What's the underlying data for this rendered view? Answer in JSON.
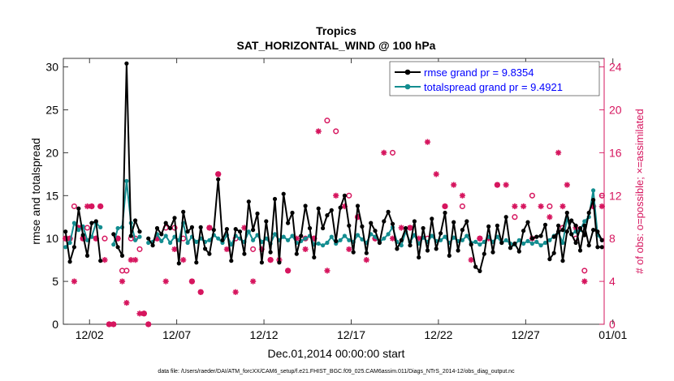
{
  "chart_data": {
    "type": "line",
    "title": "Tropics",
    "subtitle": "SAT_HORIZONTAL_WIND @ 100 hPa",
    "xlabel": "Dec.01,2014 00:00:00 start",
    "ylabel": "rmse and totalspread",
    "y2label": "# of obs: o=possible; ×=assimilated",
    "footnote": "data file: /Users/raeder/DAI/ATM_forcXX/CAM6_setup/f.e21.FHIST_BGC.f09_025.CAM6assim.011/Diags_NTrS_2014-12/obs_diag_output.nc",
    "xlim": [
      0.5,
      31.5
    ],
    "ylim": [
      0,
      31
    ],
    "y2lim": [
      0,
      24.8
    ],
    "x_ticks": [
      2,
      7,
      12,
      17,
      22,
      27,
      32
    ],
    "x_tick_labels": [
      "12/02",
      "12/07",
      "12/12",
      "12/17",
      "12/22",
      "12/27",
      "01/01"
    ],
    "y_ticks": [
      0,
      5,
      10,
      15,
      20,
      25,
      30
    ],
    "y2_ticks": [
      0,
      4,
      8,
      12,
      16,
      20,
      24
    ],
    "legend_position": "top-right",
    "colors": {
      "rmse": "#000000",
      "spread": "#138d90",
      "obs": "#d6155e",
      "legend_text": "#0000ff"
    },
    "series": [
      {
        "name": "rmse grand pr = 9.8354",
        "segments": [
          {
            "x": [
              0.625,
              0.875,
              1.125,
              1.375,
              1.625,
              1.875,
              2.125,
              2.375,
              2.625
            ],
            "y": [
              10.8,
              7.3,
              9.0,
              13.5,
              10.4,
              8.0,
              11.8,
              12.0,
              7.4
            ]
          },
          {
            "x": [
              3.375,
              3.625,
              3.875,
              4.125,
              4.375,
              4.625,
              4.875
            ],
            "y": [
              10.5,
              9.0,
              8.0,
              30.4,
              10.3,
              12.1,
              10.8
            ]
          },
          {
            "x": [
              5.375,
              5.625,
              5.875,
              6.125,
              6.375,
              6.625,
              6.875,
              7.125,
              7.375,
              7.625,
              7.875,
              8.125,
              8.375,
              8.625,
              8.875,
              9.125,
              9.375,
              9.625,
              9.875,
              10.125,
              10.375,
              10.625,
              10.875,
              11.125,
              11.375,
              11.625,
              11.875,
              12.125,
              12.375,
              12.625,
              12.875,
              13.125,
              13.375,
              13.625,
              13.875,
              14.125,
              14.375,
              14.625,
              14.875,
              15.125,
              15.375,
              15.625,
              15.875,
              16.125,
              16.375,
              16.625,
              16.875,
              17.125,
              17.375,
              17.625,
              17.875,
              18.125,
              18.375,
              18.625,
              18.875,
              19.125,
              19.375,
              19.625,
              19.875,
              20.125,
              20.375,
              20.625,
              20.875,
              21.125,
              21.375,
              21.625,
              21.875,
              22.125,
              22.375,
              22.625,
              22.875,
              23.125,
              23.375,
              23.625,
              23.875,
              24.125,
              24.375,
              24.625,
              24.875,
              25.125,
              25.375,
              25.625,
              25.875,
              26.125,
              26.375,
              26.625,
              26.875,
              27.125,
              27.375,
              27.625,
              27.875,
              28.125,
              28.375,
              28.625,
              28.875,
              29.125,
              29.375,
              29.625,
              29.875,
              30.125,
              30.375,
              30.625,
              30.875,
              31.125,
              31.375
            ],
            "y": [
              10.0,
              9.2,
              11.2,
              10.5,
              11.8,
              11.2,
              12.4,
              7.1,
              13.1,
              10.8,
              11.3,
              7.2,
              11.3,
              8.8,
              8.2,
              11.0,
              16.9,
              9.8,
              11.1,
              7.4,
              11.1,
              10.8,
              8.2,
              14.3,
              11.0,
              12.9,
              7.2,
              12.0,
              8.4,
              14.6,
              7.2,
              15.2,
              11.8,
              13.0,
              8.2,
              10.3,
              13.8,
              11.2,
              7.8,
              13.5,
              11.2,
              12.7,
              13.3,
              9.7,
              13.6,
              15.0,
              11.5,
              8.4,
              13.8,
              11.4,
              8.3,
              11.8,
              10.9,
              9.5,
              12.0,
              13.1,
              11.7,
              8.8,
              9.8,
              11.2,
              9.2,
              12.0,
              7.8,
              11.2,
              8.6,
              12.3,
              8.8,
              10.6,
              13.0,
              8.0,
              11.9,
              8.6,
              11.0,
              12.0,
              9.3,
              6.7,
              6.2,
              8.2,
              11.4,
              8.4,
              11.5,
              9.5,
              12.5,
              8.9,
              9.4,
              8.5,
              10.9,
              11.9,
              10.0,
              10.2,
              10.3,
              11.6,
              7.6,
              8.3,
              11.5,
              7.4,
              10.8,
              12.1,
              11.5,
              8.6,
              11.5,
              9.2,
              11.0,
              10.8,
              9.8
            ]
          },
          {
            "x": [
              28.625,
              28.875,
              29.125,
              29.375,
              29.625,
              29.875,
              30.125,
              30.375,
              30.625,
              30.875,
              31.125,
              31.375
            ],
            "y": [
              10.2,
              10.8,
              11.0,
              13.0,
              10.5,
              9.5,
              11.2,
              10.4,
              13.0,
              14.5,
              9.0,
              9.0
            ]
          }
        ]
      },
      {
        "name": "totalspread grand pr = 9.4921",
        "segments": [
          {
            "x": [
              0.625,
              0.875,
              1.125,
              1.375,
              1.625,
              1.875,
              2.125,
              2.375,
              2.625
            ],
            "y": [
              9.0,
              9.5,
              11.8,
              11.0,
              11.4,
              9.8,
              10.2,
              11.8,
              11.3
            ]
          },
          {
            "x": [
              3.375,
              3.625,
              3.875,
              4.125,
              4.375,
              4.625,
              4.875
            ],
            "y": [
              9.3,
              11.2,
              11.3,
              16.7,
              11.8,
              9.8,
              10.2
            ]
          },
          {
            "x": [
              5.375,
              5.625,
              5.875,
              6.125,
              6.375,
              6.625,
              6.875,
              7.125,
              7.375,
              7.625,
              7.875,
              8.125,
              8.375,
              8.625,
              8.875,
              9.125,
              9.375,
              9.625,
              9.875,
              10.125,
              10.375,
              10.625,
              10.875,
              11.125,
              11.375,
              11.625,
              11.875,
              12.125,
              12.375,
              12.625,
              12.875,
              13.125,
              13.375,
              13.625,
              13.875,
              14.125,
              14.375,
              14.625,
              14.875,
              15.125,
              15.375,
              15.625,
              15.875,
              16.125,
              16.375,
              16.625,
              16.875,
              17.125,
              17.375,
              17.625,
              17.875,
              18.125,
              18.375,
              18.625,
              18.875,
              19.125,
              19.375,
              19.625,
              19.875,
              20.125,
              20.375,
              20.625,
              20.875,
              21.125,
              21.375,
              21.625,
              21.875,
              22.125,
              22.375,
              22.625,
              22.875,
              23.125,
              23.375,
              23.625,
              23.875,
              24.125,
              24.375,
              24.625,
              24.875,
              25.125,
              25.375,
              25.625,
              25.875,
              26.125,
              26.375,
              26.625,
              26.875,
              27.125,
              27.375,
              27.625,
              27.875,
              28.125
            ],
            "y": [
              9.5,
              9.6,
              10.5,
              9.7,
              10.3,
              9.5,
              10.2,
              9.8,
              11.8,
              9.5,
              10.2,
              9.6,
              10.0,
              9.6,
              9.8,
              10.4,
              10.0,
              9.5,
              10.4,
              9.3,
              10.3,
              10.0,
              9.6,
              10.8,
              9.8,
              10.4,
              9.6,
              10.0,
              9.4,
              10.5,
              9.8,
              10.2,
              9.8,
              10.3,
              9.5,
              9.7,
              10.0,
              10.3,
              9.3,
              9.4,
              9.2,
              9.5,
              10.2,
              9.4,
              9.8,
              10.3,
              9.8,
              9.6,
              10.4,
              9.9,
              9.5,
              10.5,
              10.2,
              9.6,
              10.0,
              10.5,
              11.3,
              9.6,
              9.2,
              10.8,
              9.6,
              10.4,
              9.4,
              10.1,
              9.6,
              10.3,
              9.7,
              9.8,
              10.2,
              9.5,
              10.1,
              9.7,
              9.8,
              10.3,
              9.5,
              9.6,
              9.3,
              9.6,
              10.2,
              9.6,
              10.2,
              9.5,
              9.8,
              9.4,
              9.3,
              9.8,
              9.4,
              9.7,
              9.4,
              9.6,
              9.2,
              9.5
            ]
          },
          {
            "x": [
              28.375,
              28.625,
              28.875,
              29.125,
              29.375,
              29.625,
              29.875,
              30.125,
              30.375,
              30.625,
              30.875,
              31.125,
              31.375
            ],
            "y": [
              9.8,
              10.3,
              10.7,
              9.5,
              12.4,
              10.5,
              10.8,
              11.0,
              12.0,
              12.5,
              15.6,
              10.4,
              9.8
            ]
          }
        ]
      },
      {
        "name": "obs possible",
        "x": [
          0.625,
          0.875,
          1.125,
          1.375,
          1.625,
          1.875,
          2.125,
          2.375,
          2.625,
          2.875,
          3.125,
          3.375,
          3.625,
          3.875,
          4.125,
          4.375,
          4.625,
          4.875,
          5.125,
          5.375,
          5.875,
          6.375,
          6.875,
          7.375,
          7.875,
          8.375,
          8.875,
          9.375,
          10.375,
          11.375,
          12.375,
          13.375,
          14.375,
          14.875,
          15.625,
          16.125,
          16.875,
          17.375,
          18.375,
          19.375,
          20.375,
          21.375,
          22.375,
          23.375,
          24.375,
          25.375,
          26.375,
          27.375,
          28.375,
          29.125,
          29.875,
          30.375,
          30.875,
          31.375
        ],
        "y": [
          8,
          8,
          11,
          9,
          8,
          9,
          11,
          8,
          11,
          8,
          0,
          0,
          8,
          5,
          5,
          8,
          8,
          7,
          1,
          0,
          8,
          9,
          9,
          8,
          4,
          3,
          9,
          14,
          8,
          7,
          6,
          5,
          8,
          8,
          19,
          18,
          12,
          10,
          8,
          16,
          9,
          8,
          11,
          11,
          8,
          13,
          10,
          12,
          11,
          9,
          8,
          5,
          11,
          12
        ]
      },
      {
        "name": "obs assimilated",
        "x": [
          0.625,
          0.875,
          1.125,
          1.375,
          1.625,
          1.875,
          2.125,
          2.375,
          2.625,
          2.875,
          3.125,
          3.375,
          3.625,
          3.875,
          4.125,
          4.375,
          4.625,
          4.875,
          5.125,
          5.375,
          5.875,
          6.375,
          6.875,
          7.375,
          7.875,
          8.375,
          8.875,
          9.375,
          9.875,
          10.375,
          10.875,
          11.375,
          11.875,
          12.375,
          12.875,
          13.375,
          13.875,
          14.375,
          14.875,
          15.125,
          15.625,
          16.125,
          16.625,
          16.875,
          17.375,
          17.875,
          18.375,
          18.875,
          19.375,
          19.875,
          20.375,
          20.875,
          21.375,
          21.875,
          22.375,
          22.875,
          23.375,
          23.875,
          24.375,
          24.875,
          25.375,
          25.875,
          26.375,
          26.875,
          27.375,
          27.875,
          28.375,
          28.875,
          29.125,
          29.375,
          29.875,
          30.375,
          30.875,
          31.375
        ],
        "y": [
          8,
          8,
          4,
          9,
          8,
          11,
          11,
          8,
          11,
          6,
          0,
          0,
          8,
          4,
          2,
          6,
          6,
          1,
          1,
          0,
          8,
          4,
          7,
          6,
          4,
          3,
          9,
          14,
          7,
          3,
          9,
          4,
          7,
          6,
          6,
          5,
          8,
          7,
          8,
          18,
          5,
          12,
          11,
          7,
          10,
          6,
          8,
          16,
          8,
          9,
          9,
          8,
          17,
          14,
          11,
          13,
          12,
          6,
          8,
          8,
          13,
          13,
          11,
          11,
          8,
          11,
          10,
          16,
          11,
          13,
          9,
          4,
          11,
          11
        ]
      }
    ]
  }
}
